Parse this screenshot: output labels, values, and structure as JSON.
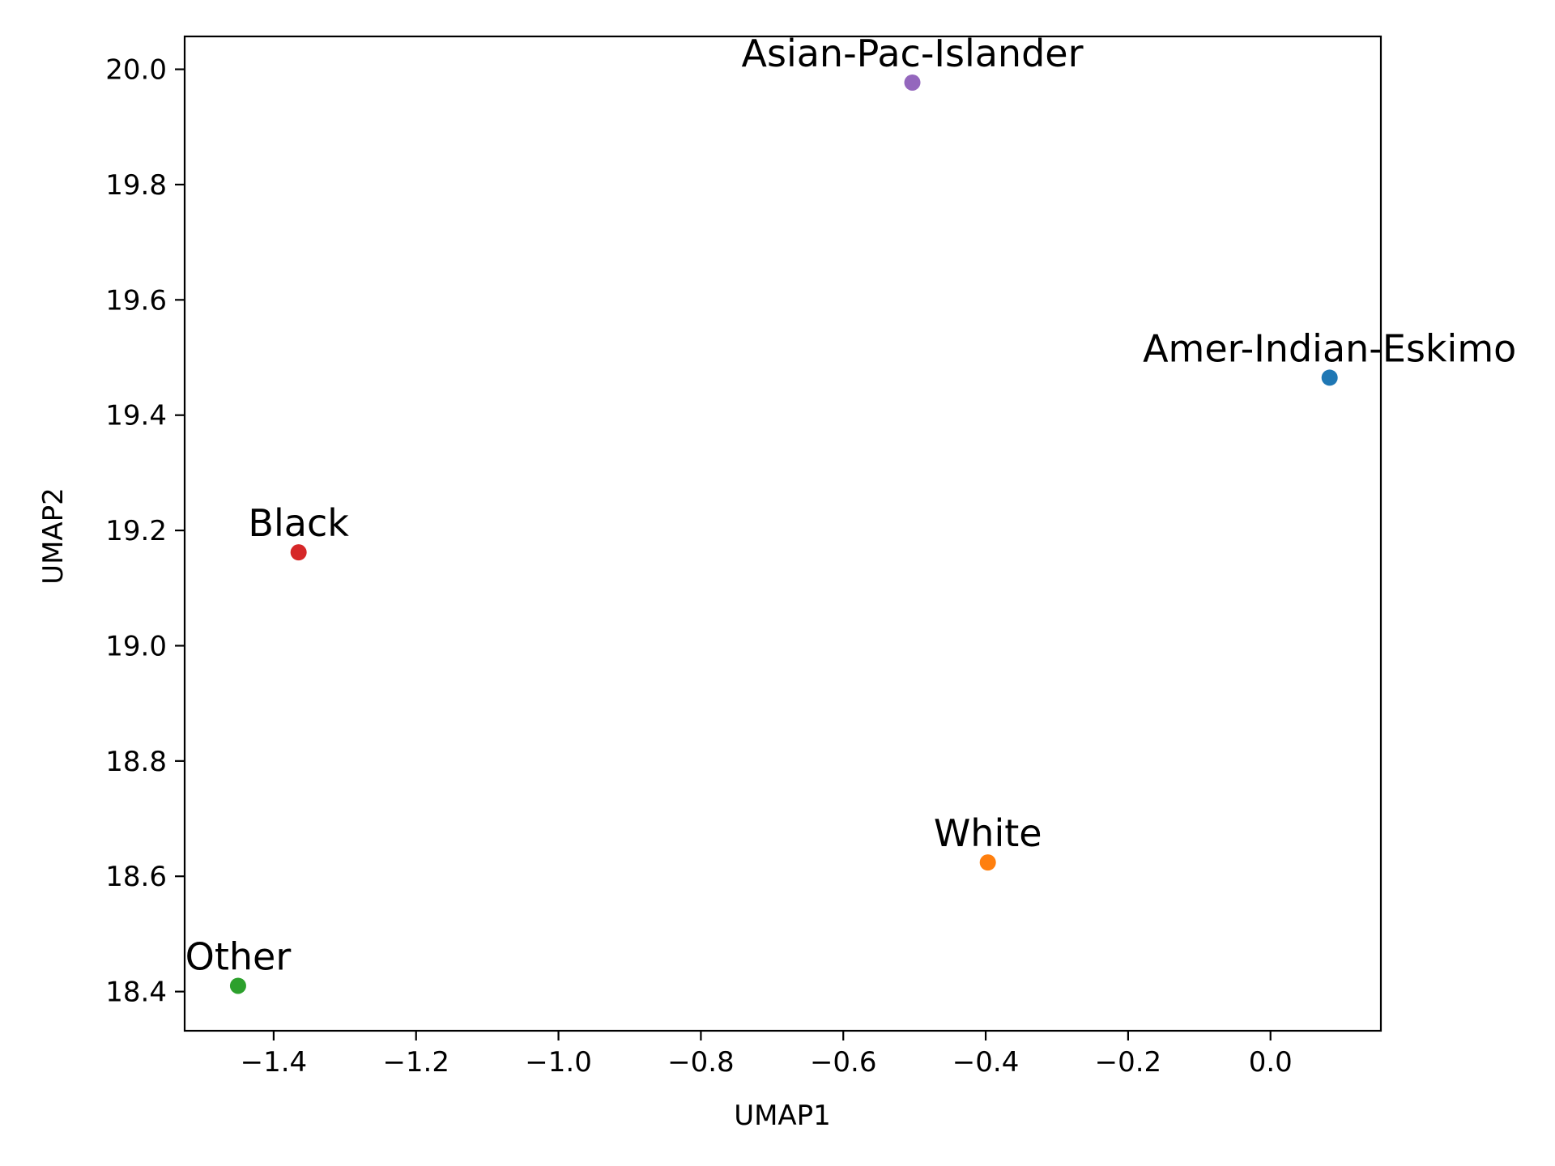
{
  "chart_data": {
    "type": "scatter",
    "title": "",
    "xlabel": "UMAP1",
    "ylabel": "UMAP2",
    "xlim": [
      -1.525,
      0.155
    ],
    "ylim": [
      18.332,
      20.057
    ],
    "grid": false,
    "x_ticks": [
      {
        "value": -1.4,
        "label": "−1.4"
      },
      {
        "value": -1.2,
        "label": "−1.2"
      },
      {
        "value": -1.0,
        "label": "−1.0"
      },
      {
        "value": -0.8,
        "label": "−0.8"
      },
      {
        "value": -0.6,
        "label": "−0.6"
      },
      {
        "value": -0.4,
        "label": "−0.4"
      },
      {
        "value": -0.2,
        "label": "−0.2"
      },
      {
        "value": 0.0,
        "label": "0.0"
      }
    ],
    "y_ticks": [
      {
        "value": 18.4,
        "label": "18.4"
      },
      {
        "value": 18.6,
        "label": "18.6"
      },
      {
        "value": 18.8,
        "label": "18.8"
      },
      {
        "value": 19.0,
        "label": "19.0"
      },
      {
        "value": 19.2,
        "label": "19.2"
      },
      {
        "value": 19.4,
        "label": "19.4"
      },
      {
        "value": 19.6,
        "label": "19.6"
      },
      {
        "value": 19.8,
        "label": "19.8"
      },
      {
        "value": 20.0,
        "label": "20.0"
      }
    ],
    "points": [
      {
        "label": "Amer-Indian-Eskimo",
        "x": 0.083,
        "y": 19.465,
        "color": "#1f77b4"
      },
      {
        "label": "White",
        "x": -0.397,
        "y": 18.624,
        "color": "#ff7f0e"
      },
      {
        "label": "Other",
        "x": -1.45,
        "y": 18.41,
        "color": "#2ca02c"
      },
      {
        "label": "Black",
        "x": -1.365,
        "y": 19.162,
        "color": "#d62728"
      },
      {
        "label": "Asian-Pac-Islander",
        "x": -0.503,
        "y": 19.977,
        "color": "#9467bd"
      }
    ]
  }
}
